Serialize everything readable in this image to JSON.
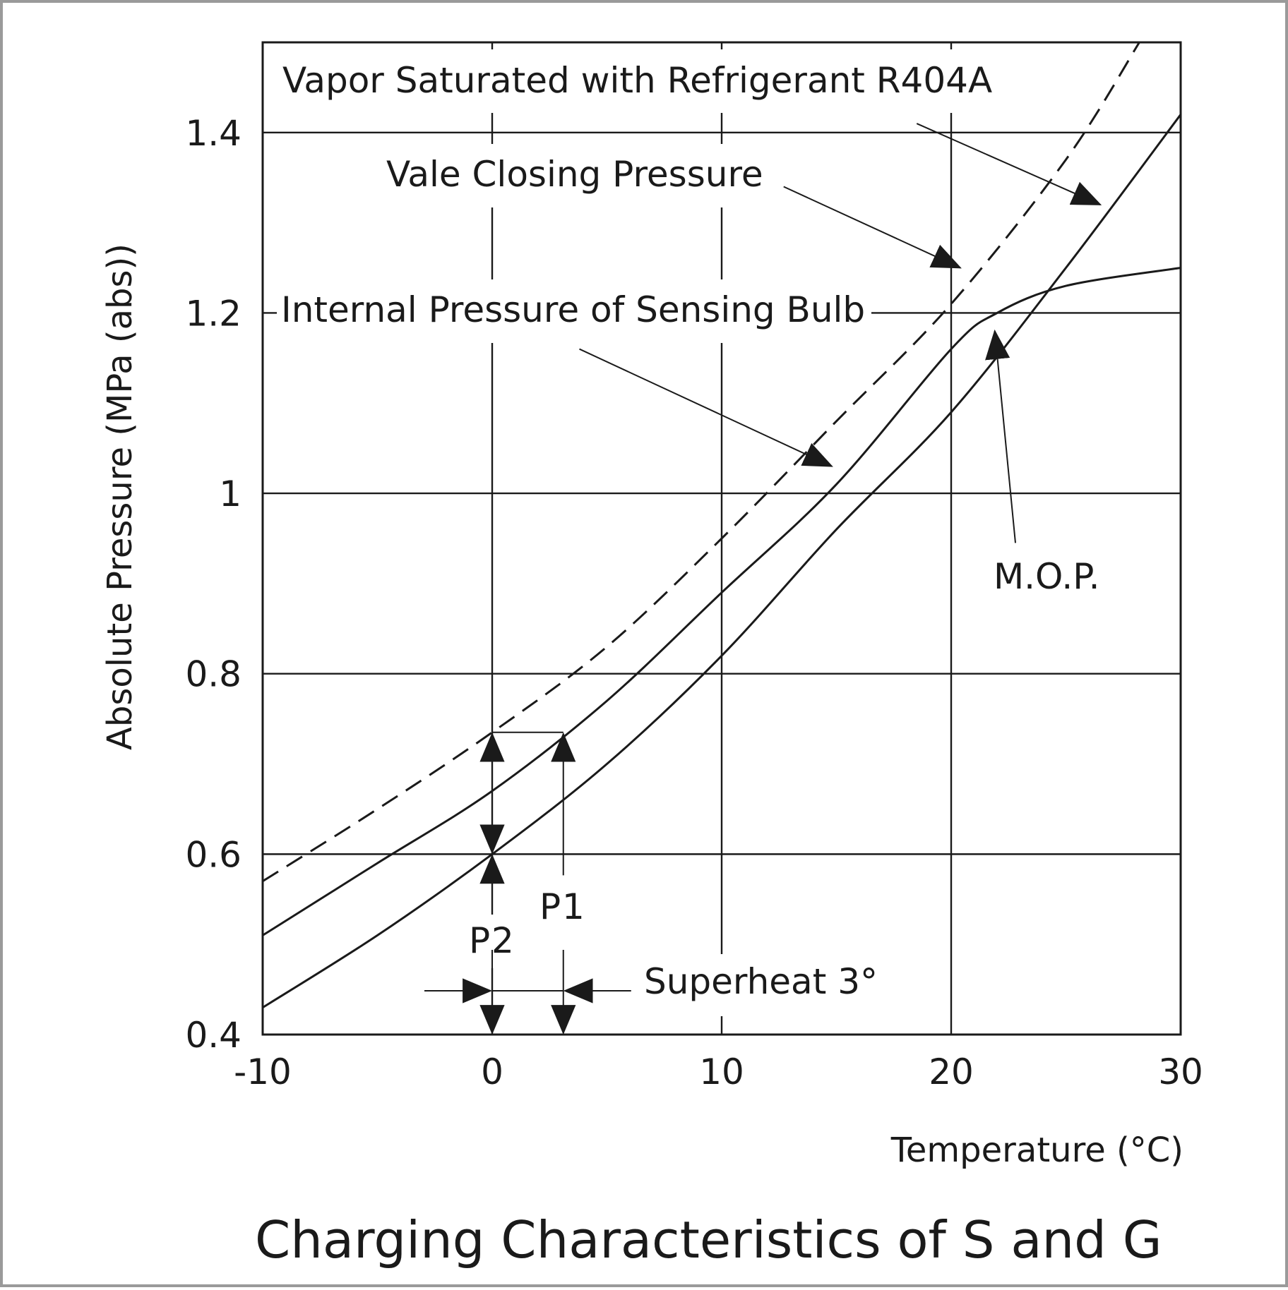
{
  "chart_data": {
    "type": "line",
    "title": "Charging Characteristics of S and G",
    "xlabel": "Temperature (°C)",
    "ylabel": "Absolute Pressure (MPa (abs))",
    "xlim": [
      -10,
      30
    ],
    "ylim": [
      0.4,
      1.5
    ],
    "x_ticks": [
      -10,
      0,
      10,
      20,
      30
    ],
    "x_tick_labels": [
      "-10",
      "0",
      "10",
      "20",
      "30"
    ],
    "y_ticks": [
      0.4,
      0.6,
      0.8,
      1.0,
      1.2,
      1.4
    ],
    "y_tick_labels": [
      "0.4",
      "0.6",
      "0.8",
      "1",
      "1.2",
      "1.4"
    ],
    "grid": true,
    "series": [
      {
        "name": "Vapor Saturated with Refrigerant R404A",
        "style": "solid",
        "x": [
          -10,
          -5,
          0,
          5,
          10,
          15,
          20,
          25,
          30
        ],
        "y": [
          0.43,
          0.51,
          0.6,
          0.7,
          0.82,
          0.96,
          1.09,
          1.25,
          1.42
        ]
      },
      {
        "name": "Internal Pressure of Sensing Bulb",
        "style": "solid",
        "x": [
          -10,
          -5,
          0,
          5,
          10,
          15,
          20,
          22,
          25,
          30
        ],
        "y": [
          0.51,
          0.59,
          0.67,
          0.77,
          0.89,
          1.01,
          1.16,
          1.2,
          1.23,
          1.25
        ]
      },
      {
        "name": "Vale Closing Pressure",
        "style": "dashed",
        "x": [
          -10,
          -5,
          0,
          5,
          10,
          15,
          20,
          25,
          28.2
        ],
        "y": [
          0.57,
          0.65,
          0.735,
          0.83,
          0.95,
          1.08,
          1.21,
          1.37,
          1.5
        ]
      }
    ],
    "annotations": [
      {
        "text": "Vapor Saturated with Refrigerant R404A",
        "from": [
          18.5,
          1.41
        ],
        "to": [
          26.5,
          1.32
        ]
      },
      {
        "text": "Vale Closing Pressure",
        "from": [
          12.7,
          1.34
        ],
        "to": [
          20.4,
          1.25
        ]
      },
      {
        "text": "Internal Pressure of Sensing Bulb",
        "from": [
          3.8,
          1.16
        ],
        "to": [
          14.8,
          1.03
        ]
      },
      {
        "text": "M.O.P.",
        "from": [
          22.8,
          0.945
        ],
        "to": [
          21.9,
          1.18
        ]
      },
      {
        "text": "P1",
        "x": 3.1,
        "y_from": 0.6,
        "y_to": 0.735
      },
      {
        "text": "P2",
        "x": 0,
        "y_from": 0.4,
        "y_to": 0.735
      },
      {
        "text": "Superheat 3°",
        "x_from": 0,
        "x_to": 3.1
      }
    ]
  }
}
